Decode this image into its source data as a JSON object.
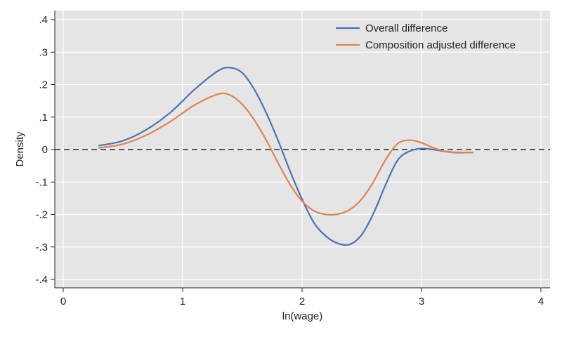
{
  "chart_data": {
    "type": "line",
    "title": "",
    "xlabel": "ln(wage)",
    "ylabel": "Density",
    "xlim": [
      0,
      4
    ],
    "ylim": [
      -0.42,
      0.42
    ],
    "xticks": [
      0,
      1,
      2,
      3,
      4
    ],
    "xtick_labels": [
      "0",
      "1",
      "2",
      "3",
      "4"
    ],
    "yticks": [
      -0.4,
      -0.3,
      -0.2,
      -0.1,
      0,
      0.1,
      0.2,
      0.3,
      0.4
    ],
    "ytick_labels": [
      "-.4",
      "-.3",
      "-.2",
      "-.1",
      "0",
      ".1",
      ".2",
      ".3",
      ".4"
    ],
    "grid": true,
    "legend_position": "top-right",
    "reference_line": {
      "y": 0,
      "style": "dashed",
      "color": "#000000"
    },
    "series": [
      {
        "name": "Overall difference",
        "color": "#4c72b0",
        "x": [
          0.3,
          0.5,
          0.7,
          0.9,
          1.1,
          1.3,
          1.4,
          1.5,
          1.6,
          1.7,
          1.8,
          1.9,
          2.0,
          2.1,
          2.2,
          2.3,
          2.4,
          2.5,
          2.6,
          2.7,
          2.8,
          2.9,
          3.0,
          3.1,
          3.2,
          3.3,
          3.43
        ],
        "y": [
          0.012,
          0.027,
          0.062,
          0.115,
          0.185,
          0.243,
          0.252,
          0.236,
          0.185,
          0.113,
          0.027,
          -0.067,
          -0.153,
          -0.226,
          -0.267,
          -0.289,
          -0.292,
          -0.262,
          -0.195,
          -0.108,
          -0.033,
          -0.005,
          0.003,
          0.0,
          -0.006,
          -0.009,
          -0.009
        ]
      },
      {
        "name": "Composition adjusted difference",
        "color": "#dd8452",
        "x": [
          0.3,
          0.5,
          0.7,
          0.9,
          1.1,
          1.3,
          1.4,
          1.5,
          1.6,
          1.7,
          1.8,
          1.9,
          2.0,
          2.1,
          2.2,
          2.3,
          2.4,
          2.5,
          2.6,
          2.7,
          2.8,
          2.9,
          3.0,
          3.1,
          3.2,
          3.3,
          3.43
        ],
        "y": [
          0.005,
          0.017,
          0.045,
          0.087,
          0.137,
          0.171,
          0.167,
          0.139,
          0.091,
          0.029,
          -0.042,
          -0.108,
          -0.159,
          -0.189,
          -0.2,
          -0.199,
          -0.185,
          -0.152,
          -0.098,
          -0.031,
          0.018,
          0.029,
          0.021,
          0.005,
          -0.006,
          -0.01,
          -0.009
        ]
      }
    ]
  }
}
